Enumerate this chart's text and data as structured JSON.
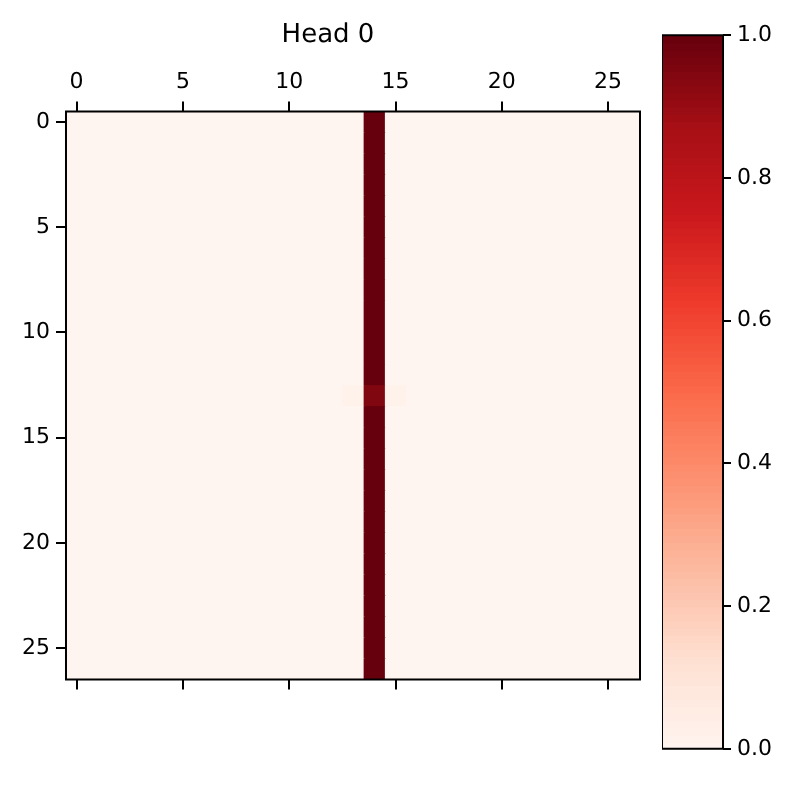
{
  "chart_data": {
    "type": "heatmap",
    "title": "Head 0",
    "categories": [
      "0",
      null,
      null,
      null,
      null,
      "5",
      null,
      null,
      null,
      null,
      "10",
      null,
      null,
      null,
      null,
      "15",
      null,
      null,
      null,
      null,
      "20",
      null,
      null,
      null,
      null,
      "25",
      null
    ],
    "y_categories": [
      "0",
      null,
      null,
      null,
      null,
      "5",
      null,
      null,
      null,
      null,
      "10",
      null,
      null,
      null,
      null,
      "15",
      null,
      null,
      null,
      null,
      "20",
      null,
      null,
      null,
      null,
      "25",
      null
    ],
    "clim": [
      0,
      1
    ],
    "cticks": [
      {
        "value": 0,
        "label": "0.0"
      },
      {
        "value": 0.2,
        "label": "0.2"
      },
      {
        "value": 0.4,
        "label": "0.4"
      },
      {
        "value": 0.6,
        "label": "0.6"
      },
      {
        "value": 0.8,
        "label": "0.8"
      },
      {
        "value": 1,
        "label": "1.0"
      }
    ],
    "cells": [
      [
        0,
        0,
        0,
        0,
        0,
        0,
        0,
        0,
        0,
        0,
        0,
        0,
        0,
        0,
        1,
        0,
        0,
        0,
        0,
        0,
        0,
        0,
        0,
        0,
        0,
        0,
        0
      ],
      [
        0,
        0,
        0,
        0,
        0,
        0,
        0,
        0,
        0,
        0,
        0,
        0,
        0,
        0,
        1,
        0,
        0,
        0,
        0,
        0,
        0,
        0,
        0,
        0,
        0,
        0,
        0
      ],
      [
        0,
        0,
        0,
        0,
        0,
        0,
        0,
        0,
        0,
        0,
        0,
        0,
        0,
        0,
        1,
        0,
        0,
        0,
        0,
        0,
        0,
        0,
        0,
        0,
        0,
        0,
        0
      ],
      [
        0,
        0,
        0,
        0,
        0,
        0,
        0,
        0,
        0,
        0,
        0,
        0,
        0,
        0,
        1,
        0,
        0,
        0,
        0,
        0,
        0,
        0,
        0,
        0,
        0,
        0,
        0
      ],
      [
        0,
        0,
        0,
        0,
        0,
        0,
        0,
        0,
        0,
        0,
        0,
        0,
        0,
        0,
        1,
        0,
        0,
        0,
        0,
        0,
        0,
        0,
        0,
        0,
        0,
        0,
        0
      ],
      [
        0,
        0,
        0,
        0,
        0,
        0,
        0,
        0,
        0,
        0,
        0,
        0,
        0,
        0,
        1,
        0,
        0,
        0,
        0,
        0,
        0,
        0,
        0,
        0,
        0,
        0,
        0
      ],
      [
        0,
        0,
        0,
        0,
        0,
        0,
        0,
        0,
        0,
        0,
        0,
        0,
        0,
        0,
        1,
        0,
        0,
        0,
        0,
        0,
        0,
        0,
        0,
        0,
        0,
        0,
        0
      ],
      [
        0,
        0,
        0,
        0,
        0,
        0,
        0,
        0,
        0,
        0,
        0,
        0,
        0,
        0,
        1,
        0,
        0,
        0,
        0,
        0,
        0,
        0,
        0,
        0,
        0,
        0,
        0
      ],
      [
        0,
        0,
        0,
        0,
        0,
        0,
        0,
        0,
        0,
        0,
        0,
        0,
        0,
        0,
        1,
        0,
        0,
        0,
        0,
        0,
        0,
        0,
        0,
        0,
        0,
        0,
        0
      ],
      [
        0,
        0,
        0,
        0,
        0,
        0,
        0,
        0,
        0,
        0,
        0,
        0,
        0,
        0,
        1,
        0,
        0,
        0,
        0,
        0,
        0,
        0,
        0,
        0,
        0,
        0,
        0
      ],
      [
        0,
        0,
        0,
        0,
        0,
        0,
        0,
        0,
        0,
        0,
        0,
        0,
        0,
        0,
        1,
        0,
        0,
        0,
        0,
        0,
        0,
        0,
        0,
        0,
        0,
        0,
        0
      ],
      [
        0,
        0,
        0,
        0,
        0,
        0,
        0,
        0,
        0,
        0,
        0,
        0,
        0,
        0,
        1,
        0,
        0,
        0,
        0,
        0,
        0,
        0,
        0,
        0,
        0,
        0,
        0
      ],
      [
        0,
        0,
        0,
        0,
        0,
        0,
        0,
        0,
        0,
        0,
        0,
        0,
        0,
        0,
        1,
        0,
        0,
        0,
        0,
        0,
        0,
        0,
        0,
        0,
        0,
        0,
        0
      ],
      [
        0,
        0,
        0,
        0,
        0,
        0,
        0,
        0,
        0,
        0,
        0,
        0,
        0,
        0.02,
        0.95,
        0.02,
        0,
        0,
        0,
        0,
        0,
        0,
        0,
        0,
        0,
        0,
        0
      ],
      [
        0,
        0,
        0,
        0,
        0,
        0,
        0,
        0,
        0,
        0,
        0,
        0,
        0,
        0,
        1,
        0,
        0,
        0,
        0,
        0,
        0,
        0,
        0,
        0,
        0,
        0,
        0
      ],
      [
        0,
        0,
        0,
        0,
        0,
        0,
        0,
        0,
        0,
        0,
        0,
        0,
        0,
        0,
        1,
        0,
        0,
        0,
        0,
        0,
        0,
        0,
        0,
        0,
        0,
        0,
        0
      ],
      [
        0,
        0,
        0,
        0,
        0,
        0,
        0,
        0,
        0,
        0,
        0,
        0,
        0,
        0,
        1,
        0,
        0,
        0,
        0,
        0,
        0,
        0,
        0,
        0,
        0,
        0,
        0
      ],
      [
        0,
        0,
        0,
        0,
        0,
        0,
        0,
        0,
        0,
        0,
        0,
        0,
        0,
        0,
        1,
        0,
        0,
        0,
        0,
        0,
        0,
        0,
        0,
        0,
        0,
        0,
        0
      ],
      [
        0,
        0,
        0,
        0,
        0,
        0,
        0,
        0,
        0,
        0,
        0,
        0,
        0,
        0,
        1,
        0,
        0,
        0,
        0,
        0,
        0,
        0,
        0,
        0,
        0,
        0,
        0
      ],
      [
        0,
        0,
        0,
        0,
        0,
        0,
        0,
        0,
        0,
        0,
        0,
        0,
        0,
        0,
        1,
        0,
        0,
        0,
        0,
        0,
        0,
        0,
        0,
        0,
        0,
        0,
        0
      ],
      [
        0,
        0,
        0,
        0,
        0,
        0,
        0,
        0,
        0,
        0,
        0,
        0,
        0,
        0,
        1,
        0,
        0,
        0,
        0,
        0,
        0,
        0,
        0,
        0,
        0,
        0,
        0
      ],
      [
        0,
        0,
        0,
        0,
        0,
        0,
        0,
        0,
        0,
        0,
        0,
        0,
        0,
        0,
        1,
        0,
        0,
        0,
        0,
        0,
        0,
        0,
        0,
        0,
        0,
        0,
        0
      ],
      [
        0,
        0,
        0,
        0,
        0,
        0,
        0,
        0,
        0,
        0,
        0,
        0,
        0,
        0,
        1,
        0,
        0,
        0,
        0,
        0,
        0,
        0,
        0,
        0,
        0,
        0,
        0
      ],
      [
        0,
        0,
        0,
        0,
        0,
        0,
        0,
        0,
        0,
        0,
        0,
        0,
        0,
        0,
        1,
        0,
        0,
        0,
        0,
        0,
        0,
        0,
        0,
        0,
        0,
        0,
        0
      ],
      [
        0,
        0,
        0,
        0,
        0,
        0,
        0,
        0,
        0,
        0,
        0,
        0,
        0,
        0,
        1,
        0,
        0,
        0,
        0,
        0,
        0,
        0,
        0,
        0,
        0,
        0,
        0
      ],
      [
        0,
        0,
        0,
        0,
        0,
        0,
        0,
        0,
        0,
        0,
        0,
        0,
        0,
        0,
        1,
        0,
        0,
        0,
        0,
        0,
        0,
        0,
        0,
        0,
        0,
        0,
        0
      ],
      [
        0,
        0,
        0,
        0,
        0,
        0,
        0,
        0,
        0,
        0,
        0,
        0,
        0,
        0,
        1,
        0,
        0,
        0,
        0,
        0,
        0,
        0,
        0,
        0,
        0,
        0,
        0
      ]
    ]
  }
}
